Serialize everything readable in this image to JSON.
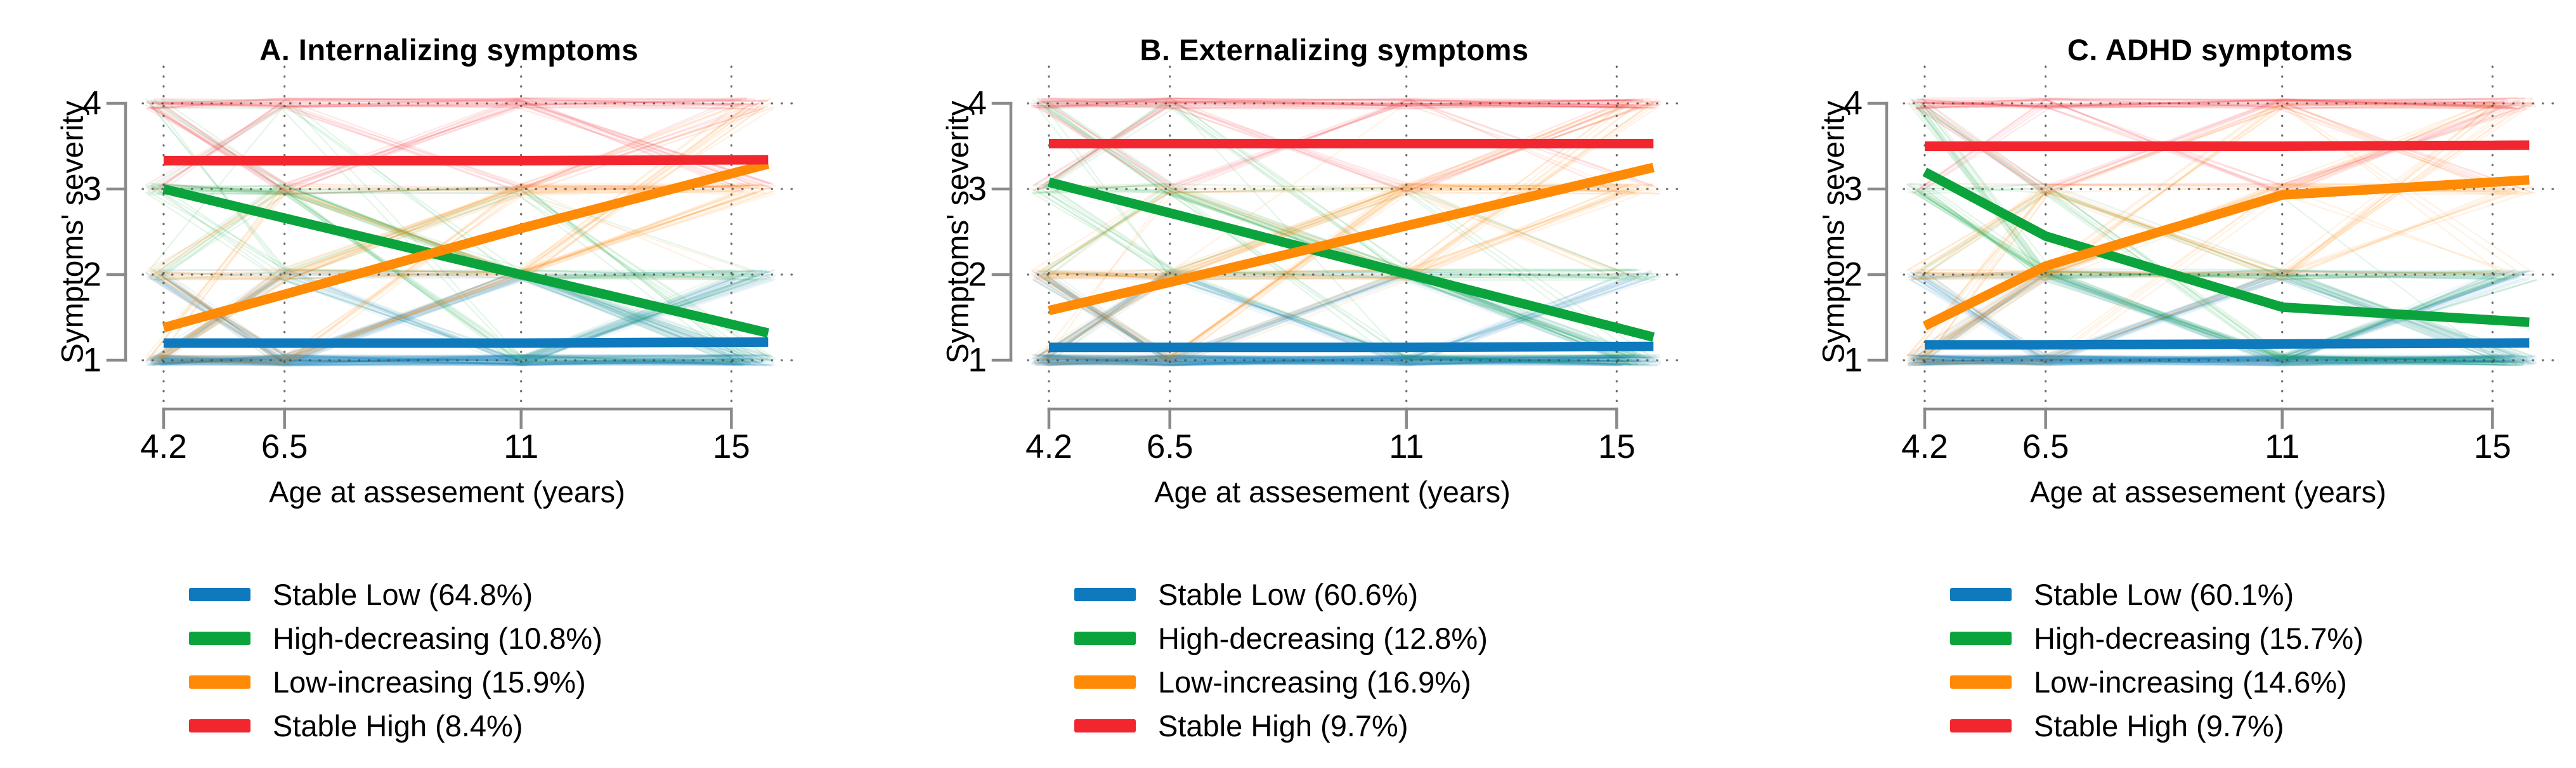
{
  "figure": {
    "x_axis_label": "Age at assesement (years)",
    "y_axis_label": "Symptoms' severity",
    "colors": {
      "stable_low": "#0E79BD",
      "high_decreasing": "#0BA33C",
      "low_increasing": "#FF8A05",
      "stable_high": "#F2262E",
      "axis": "#8A8A8A",
      "grid_dot": "#4A4A4A",
      "text": "#000000",
      "background": "#FFFFFF"
    },
    "background_trajectories": {
      "note": "thin semi-transparent individual participant trajectories behind the class-mean lines",
      "counts": {
        "stable_low": 150,
        "high_decreasing": 45,
        "low_increasing": 55,
        "stable_high": 40
      },
      "opacity": {
        "stable_low": 0.07,
        "high_decreasing": 0.1,
        "low_increasing": 0.1,
        "stable_high": 0.1
      },
      "seed": 1337
    }
  },
  "chart_data": [
    {
      "type": "line",
      "panel_label": "A",
      "title": "A. Internalizing symptoms",
      "xlabel": "Age at assesement (years)",
      "ylabel": "Symptoms' severity",
      "x_tick_labels": [
        "4.2",
        "6.5",
        "11",
        "15"
      ],
      "x_tick_values": [
        4.2,
        6.5,
        11,
        15
      ],
      "y_tick_labels": [
        "4",
        "3",
        "2",
        "1"
      ],
      "y_tick_values": [
        4,
        3,
        2,
        1
      ],
      "ylim": [
        1,
        4
      ],
      "grid": "dotted",
      "legend_position": "below",
      "series": [
        {
          "key": "stable_low",
          "name": "Stable Low",
          "percent": "64.8%",
          "legend_label": "Stable Low (64.8%)",
          "color": "#0E79BD",
          "values": [
            1.2,
            1.2,
            1.2,
            1.21
          ]
        },
        {
          "key": "high_decreasing",
          "name": "High-decreasing",
          "percent": "10.8%",
          "legend_label": "High-decreasing (10.8%)",
          "color": "#0BA33C",
          "values": [
            3.0,
            2.66,
            2.0,
            1.42
          ]
        },
        {
          "key": "low_increasing",
          "name": "Low-increasing",
          "percent": "15.9%",
          "legend_label": "Low-increasing (15.9%)",
          "color": "#FF8A05",
          "values": [
            1.38,
            1.77,
            2.54,
            3.18
          ]
        },
        {
          "key": "stable_high",
          "name": "Stable High",
          "percent": "8.4%",
          "legend_label": "Stable High (8.4%)",
          "color": "#F2262E",
          "values": [
            3.33,
            3.33,
            3.33,
            3.34
          ]
        }
      ]
    },
    {
      "type": "line",
      "panel_label": "B",
      "title": "B. Externalizing symptoms",
      "xlabel": "Age at assesement (years)",
      "ylabel": "Symptoms' severity",
      "x_tick_labels": [
        "4.2",
        "6.5",
        "11",
        "15"
      ],
      "x_tick_values": [
        4.2,
        6.5,
        11,
        15
      ],
      "y_tick_labels": [
        "4",
        "3",
        "2",
        "1"
      ],
      "y_tick_values": [
        4,
        3,
        2,
        1
      ],
      "ylim": [
        1,
        4
      ],
      "grid": "dotted",
      "legend_position": "below",
      "series": [
        {
          "key": "stable_low",
          "name": "Stable Low",
          "percent": "60.6%",
          "legend_label": "Stable Low (60.6%)",
          "color": "#0E79BD",
          "values": [
            1.15,
            1.15,
            1.15,
            1.16
          ]
        },
        {
          "key": "high_decreasing",
          "name": "High-decreasing",
          "percent": "12.8%",
          "legend_label": "High-decreasing (12.8%)",
          "color": "#0BA33C",
          "values": [
            3.08,
            2.72,
            2.01,
            1.38
          ]
        },
        {
          "key": "low_increasing",
          "name": "Low-increasing",
          "percent": "16.9%",
          "legend_label": "Low-increasing (16.9%)",
          "color": "#FF8A05",
          "values": [
            1.58,
            1.91,
            2.57,
            3.15
          ]
        },
        {
          "key": "stable_high",
          "name": "Stable High",
          "percent": "9.7%",
          "legend_label": "Stable High (9.7%)",
          "color": "#F2262E",
          "values": [
            3.53,
            3.53,
            3.53,
            3.53
          ]
        }
      ]
    },
    {
      "type": "line",
      "panel_label": "C",
      "title": "C. ADHD symptoms",
      "xlabel": "Age at assesement (years)",
      "ylabel": "Symptoms' severity",
      "x_tick_labels": [
        "4.2",
        "6.5",
        "11",
        "15"
      ],
      "x_tick_values": [
        4.2,
        6.5,
        11,
        15
      ],
      "y_tick_labels": [
        "4",
        "3",
        "2",
        "1"
      ],
      "y_tick_values": [
        4,
        3,
        2,
        1
      ],
      "ylim": [
        1,
        4
      ],
      "grid": "dotted",
      "legend_position": "below",
      "series": [
        {
          "key": "stable_low",
          "name": "Stable Low",
          "percent": "60.1%",
          "legend_label": "Stable Low (60.1%)",
          "color": "#0E79BD",
          "values": [
            1.18,
            1.18,
            1.19,
            1.2
          ]
        },
        {
          "key": "high_decreasing",
          "name": "High-decreasing",
          "percent": "15.7%",
          "legend_label": "High-decreasing (15.7%)",
          "color": "#0BA33C",
          "values": [
            3.2,
            2.45,
            1.62,
            1.47
          ]
        },
        {
          "key": "low_increasing",
          "name": "Low-increasing",
          "percent": "14.6%",
          "legend_label": "Low-increasing (14.6%)",
          "color": "#FF8A05",
          "values": [
            1.4,
            2.1,
            2.93,
            3.08
          ]
        },
        {
          "key": "stable_high",
          "name": "Stable High",
          "percent": "9.7%",
          "legend_label": "Stable High (9.7%)",
          "color": "#F2262E",
          "values": [
            3.5,
            3.5,
            3.5,
            3.51
          ]
        }
      ]
    }
  ]
}
